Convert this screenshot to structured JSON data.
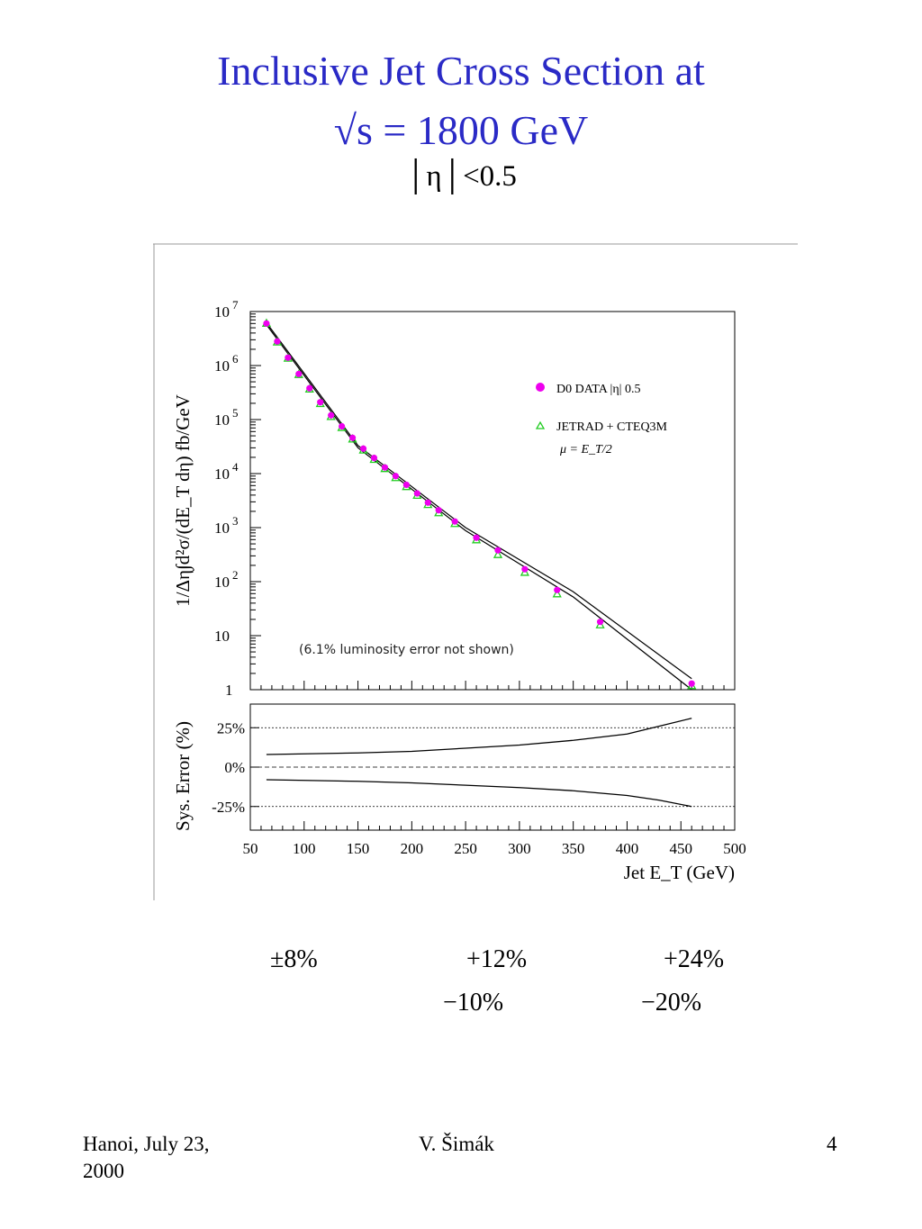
{
  "slide": {
    "title_line1": "Inclusive Jet Cross Section at",
    "title_line2": "√s = 1800 GeV",
    "eta_cut": "│η│<0.5",
    "title_color": "#2a2ac6"
  },
  "chart_data": [
    {
      "type": "scatter",
      "ylabel": "1/Δη∫d²σ/(dE_T dη)   fb/GeV",
      "y_scale": "log",
      "ylim": [
        1,
        10000000
      ],
      "xlim": [
        50,
        500
      ],
      "y_tick_labels": [
        "10^7",
        "10^6",
        "10^5",
        "10^4",
        "10^3",
        "10^2",
        "10",
        "1"
      ],
      "legend_position": "top-right",
      "legend": [
        {
          "label": "D0 DATA  |η|  0.5",
          "marker": "filled-circle",
          "color": "#ee00ee"
        },
        {
          "label": "JETRAD + CTEQ3M",
          "marker": "open-triangle",
          "color": "#22cc22"
        },
        {
          "label": "μ = E_T/2"
        }
      ],
      "annotation": "(6.1% luminosity error not shown)",
      "series": [
        {
          "name": "D0 DATA  |η|  0.5",
          "color": "#ee00ee",
          "x": [
            65,
            75,
            85,
            95,
            105,
            115,
            125,
            135,
            145,
            155,
            165,
            175,
            185,
            195,
            205,
            215,
            225,
            240,
            260,
            280,
            305,
            335,
            375,
            460
          ],
          "y": [
            6000000,
            2800000,
            1400000,
            700000,
            380000,
            210000,
            120000,
            75000,
            46000,
            29000,
            19500,
            13000,
            9000,
            6200,
            4300,
            2900,
            2100,
            1300,
            650,
            380,
            170,
            70,
            18,
            1.3
          ]
        },
        {
          "name": "JETRAD + CTEQ3M",
          "color": "#22cc22",
          "x": [
            65,
            75,
            85,
            95,
            105,
            115,
            125,
            135,
            145,
            155,
            165,
            175,
            185,
            195,
            205,
            215,
            225,
            240,
            260,
            280,
            305,
            335,
            375,
            460
          ],
          "y": [
            6100000,
            2750000,
            1380000,
            690000,
            370000,
            200000,
            115000,
            72000,
            44000,
            27500,
            18500,
            12500,
            8500,
            5800,
            4000,
            2700,
            1900,
            1200,
            600,
            320,
            150,
            60,
            16,
            1.2
          ]
        }
      ],
      "systematic_band_edges": [
        {
          "x": [
            65,
            150,
            250,
            350,
            460
          ],
          "y": [
            6200000,
            33000,
            1000,
            65,
            1.6
          ]
        },
        {
          "x": [
            65,
            150,
            250,
            350,
            460
          ],
          "y": [
            5700000,
            30000,
            880,
            52,
            1.0
          ]
        }
      ]
    },
    {
      "type": "line",
      "ylabel": "Sys. Error (%)",
      "xlabel": "Jet E_T (GeV)",
      "xlim": [
        50,
        500
      ],
      "ylim": [
        -40,
        40
      ],
      "x_ticks": [
        50,
        100,
        150,
        200,
        250,
        300,
        350,
        400,
        450,
        500
      ],
      "y_tick_labels": [
        "25%",
        "0%",
        "-25%"
      ],
      "reference_lines": [
        25,
        0,
        -25
      ],
      "series": [
        {
          "x": [
            65,
            150,
            200,
            250,
            300,
            350,
            400,
            430,
            460
          ],
          "y": [
            8,
            9,
            10,
            12,
            14,
            17,
            21,
            26,
            31
          ]
        },
        {
          "x": [
            65,
            150,
            200,
            250,
            300,
            350,
            400,
            430,
            460
          ],
          "y": [
            -8,
            -9,
            -10,
            -11.5,
            -13,
            -15,
            -18,
            -21,
            -25
          ]
        }
      ]
    }
  ],
  "error_notes": [
    {
      "top": "±8%",
      "bottom": ""
    },
    {
      "top": "+12%",
      "bottom": "−10%"
    },
    {
      "top": "+24%",
      "bottom": "−20%"
    }
  ],
  "footer": {
    "left_line1": "Hanoi, July 23,",
    "left_line2": "2000",
    "center": "V. Šimák",
    "page_number": "4"
  }
}
